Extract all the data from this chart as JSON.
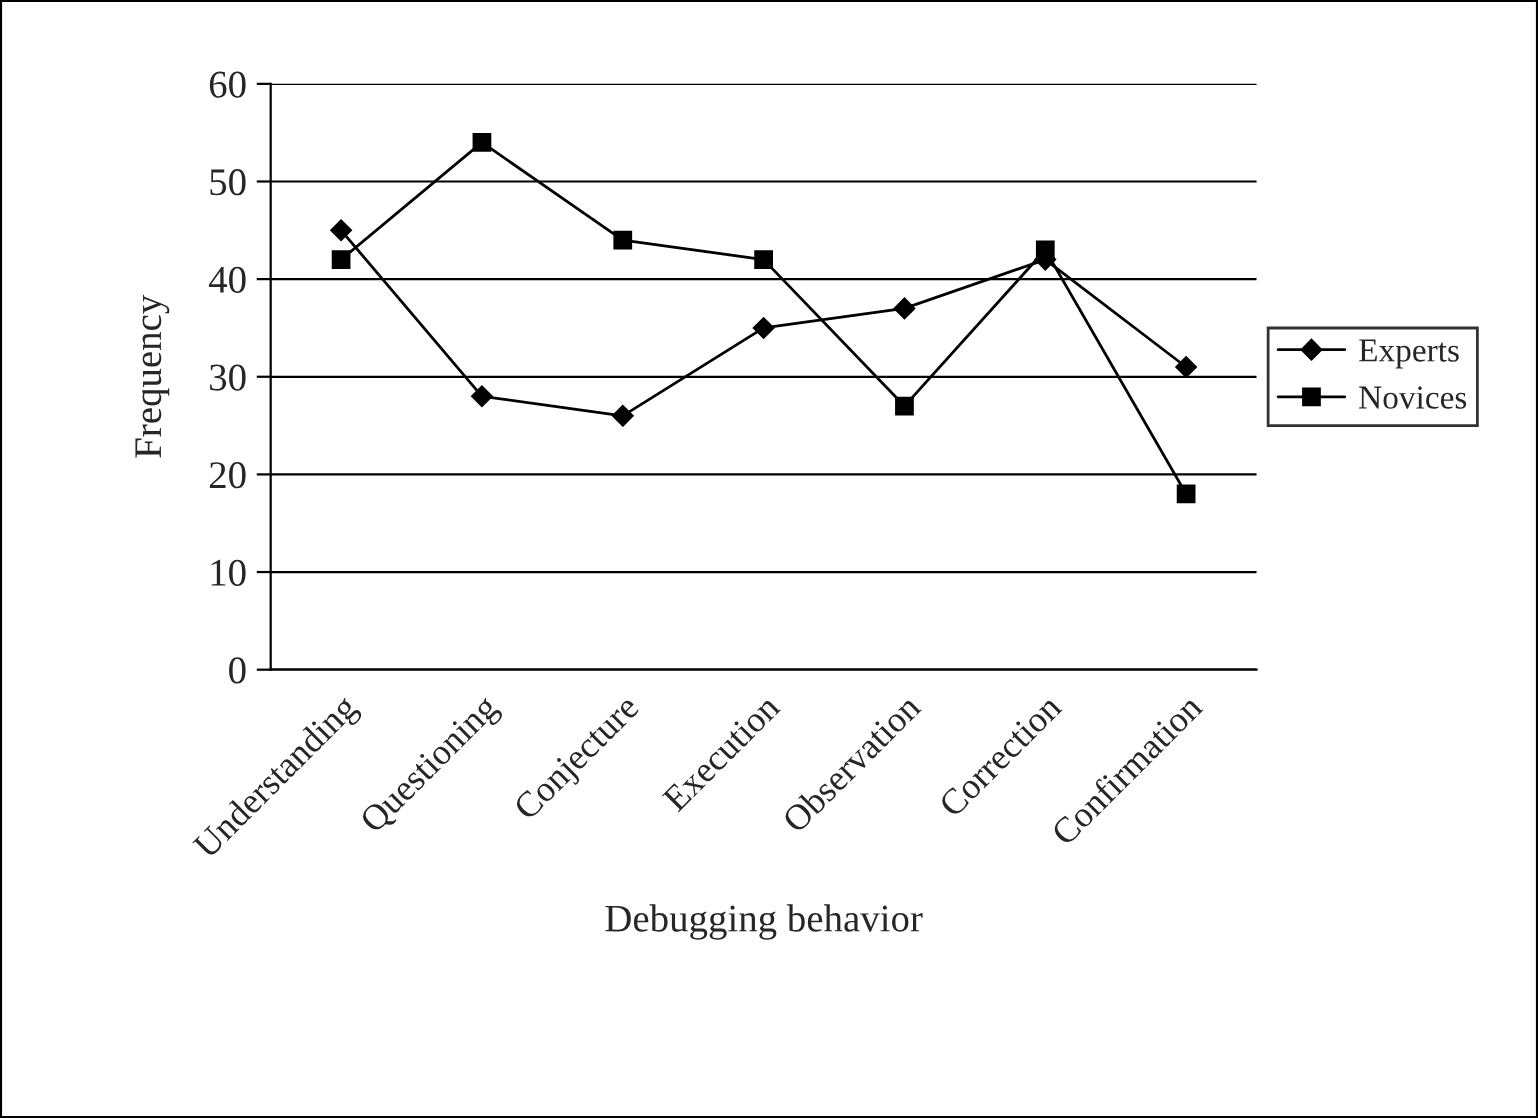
{
  "chart_data": {
    "type": "line",
    "xlabel": "Debugging behavior",
    "ylabel": "Frequency",
    "categories": [
      "Understanding",
      "Questioning",
      "Conjecture",
      "Execution",
      "Observation",
      "Correction",
      "Confirmation"
    ],
    "series": [
      {
        "name": "Experts",
        "color": "#000000",
        "marker": "diamond",
        "values": [
          45,
          28,
          26,
          35,
          37,
          42,
          31
        ]
      },
      {
        "name": "Novices",
        "color": "#000000",
        "marker": "square",
        "values": [
          42,
          54,
          44,
          42,
          27,
          43,
          18
        ]
      }
    ],
    "ylim": [
      0,
      60
    ],
    "yticks": [
      0,
      10,
      20,
      30,
      40,
      50,
      60
    ],
    "grid": "y",
    "legend": "right",
    "line_style": "solid"
  }
}
